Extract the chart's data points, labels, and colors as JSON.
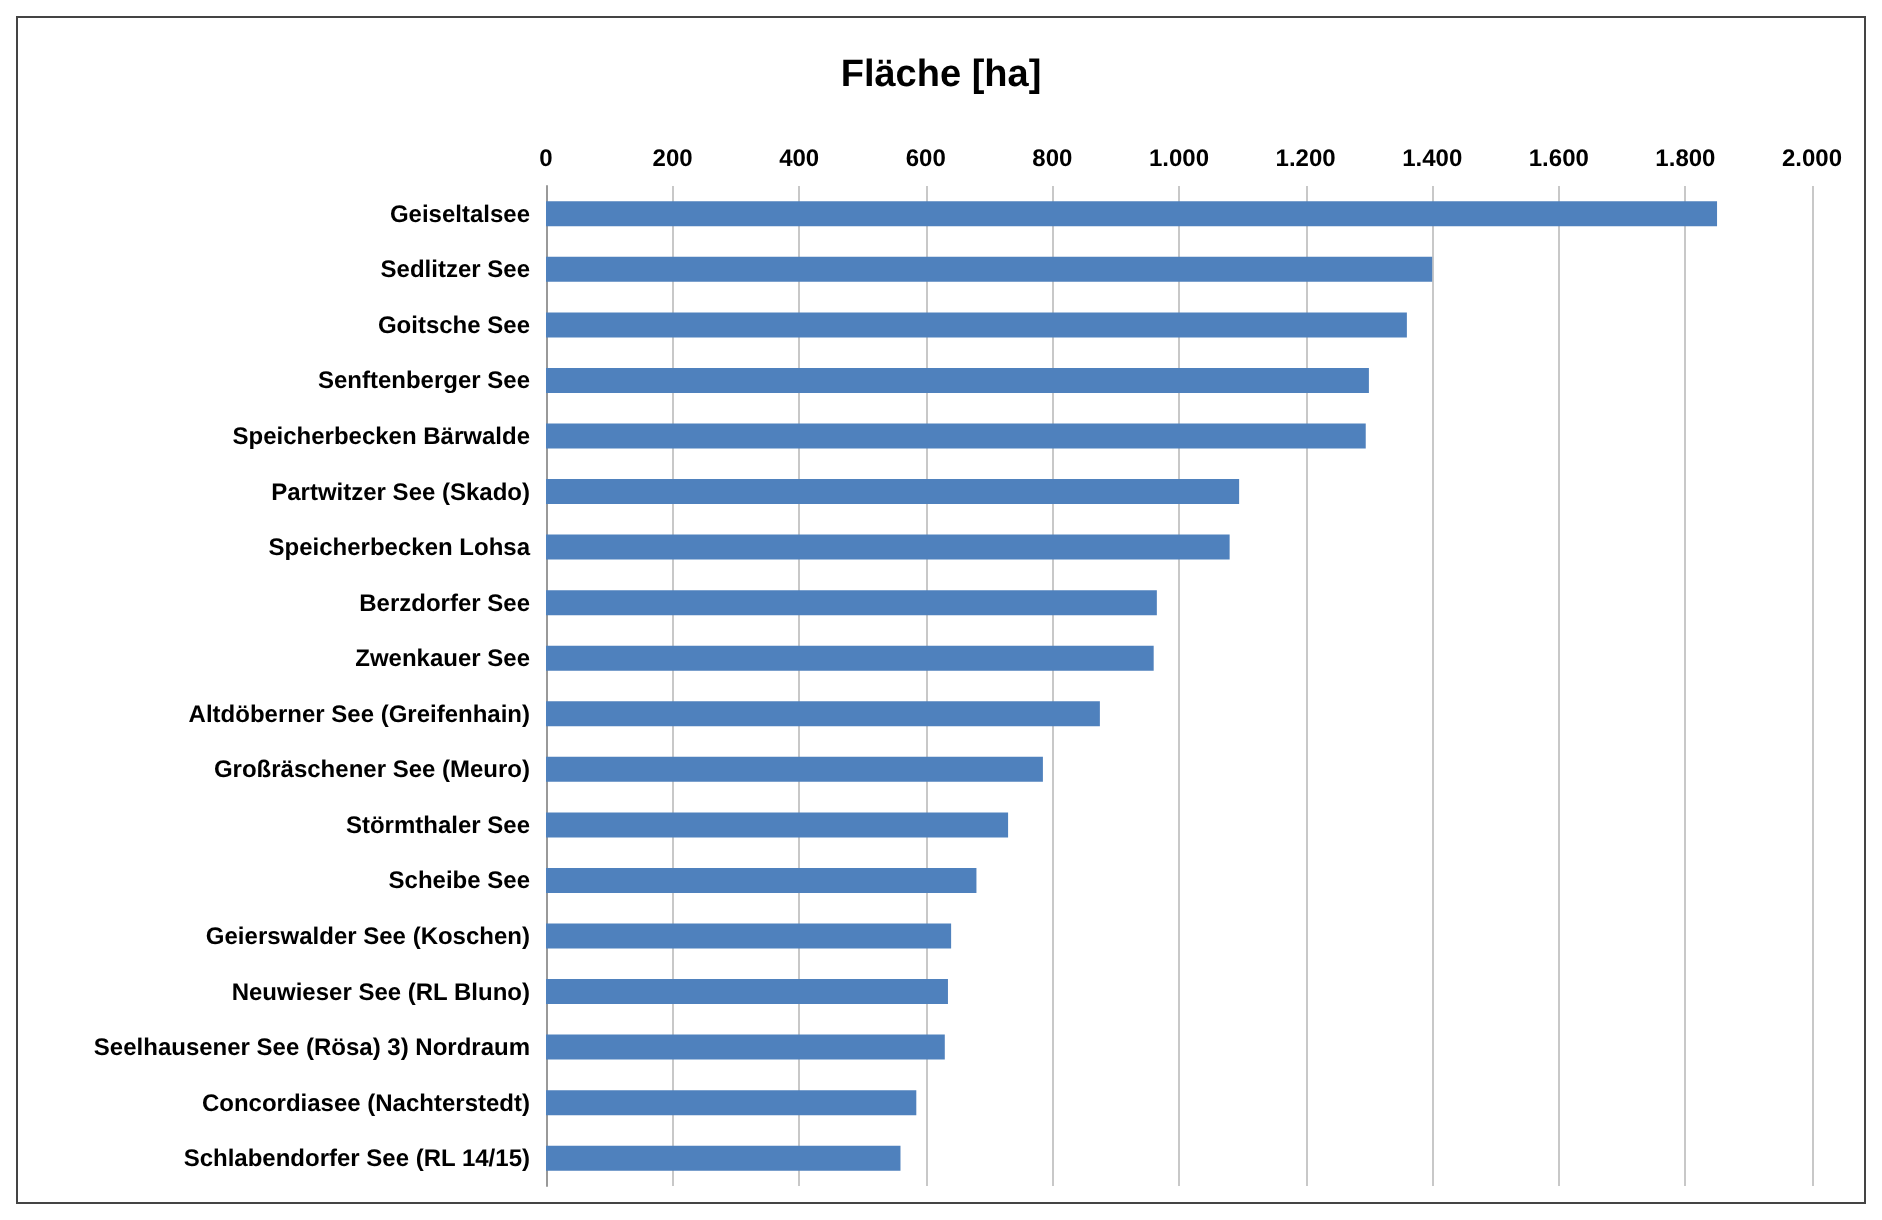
{
  "chart_data": {
    "type": "bar",
    "orientation": "horizontal",
    "title": "Fläche [ha]",
    "categories": [
      "Geiseltalsee",
      "Sedlitzer See",
      "Goitsche See",
      "Senftenberger See",
      "Speicherbecken Bärwalde",
      "Partwitzer See (Skado)",
      "Speicherbecken Lohsa",
      "Berzdorfer See",
      "Zwenkauer See",
      "Altdöberner See (Greifenhain)",
      "Großräschener See (Meuro)",
      "Störmthaler See",
      "Scheibe See",
      "Geierswalder See (Koschen)",
      "Neuwieser See (RL Bluno)",
      "Seelhausener See (Rösa) 3) Nordraum",
      "Concordiasee (Nachterstedt)",
      "Schlabendorfer See (RL 14/15)"
    ],
    "values": [
      1850,
      1400,
      1360,
      1300,
      1295,
      1095,
      1080,
      965,
      960,
      875,
      785,
      730,
      680,
      640,
      635,
      630,
      585,
      560
    ],
    "color": "#4f81bd",
    "xlim": [
      0,
      2000
    ],
    "xticks": [
      0,
      200,
      400,
      600,
      800,
      {
        "value": 1000,
        "label": "1.000"
      },
      {
        "value": 1200,
        "label": "1.200"
      },
      {
        "value": 1400,
        "label": "1.400"
      },
      {
        "value": 1600,
        "label": "1.600"
      },
      {
        "value": 1800,
        "label": "1.800"
      },
      {
        "value": 2000,
        "label": "2.000"
      }
    ],
    "grid": "x"
  }
}
